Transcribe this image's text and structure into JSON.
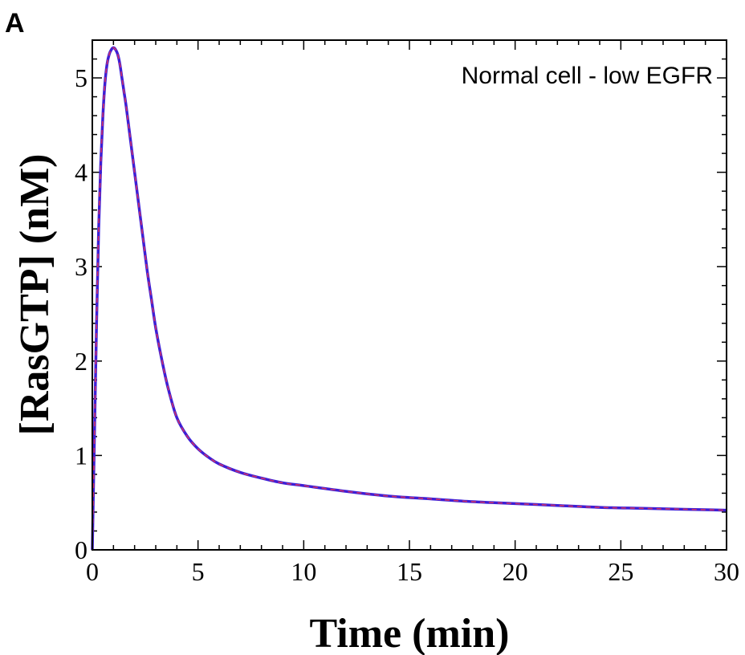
{
  "panel_label": "A",
  "chart_data": {
    "type": "line",
    "title": "",
    "annotation": "Normal cell - low EGFR",
    "xlabel": "Time (min)",
    "ylabel": "[RasGTP] (nM)",
    "xlim": [
      0,
      30
    ],
    "ylim": [
      0,
      5.4
    ],
    "xticks": [
      0,
      5,
      10,
      15,
      20,
      25,
      30
    ],
    "yticks": [
      0,
      1,
      2,
      3,
      4,
      5
    ],
    "grid": false,
    "series": [
      {
        "color": "#3d1fd6",
        "overlay_color": "#d0306a",
        "overlay_style": "dashed",
        "x": [
          0,
          0.1,
          0.2,
          0.3,
          0.4,
          0.5,
          0.6,
          0.7,
          0.8,
          0.9,
          1.0,
          1.1,
          1.2,
          1.3,
          1.4,
          1.5,
          1.6,
          1.8,
          2.0,
          2.2,
          2.4,
          2.6,
          2.8,
          3.0,
          3.3,
          3.6,
          4.0,
          4.5,
          5.0,
          5.5,
          6.0,
          7.0,
          8.0,
          9.0,
          10.0,
          12.0,
          14.0,
          16.0,
          18.0,
          20.0,
          22.0,
          24.0,
          26.0,
          28.0,
          30.0
        ],
        "y": [
          0.0,
          1.2,
          2.4,
          3.4,
          4.1,
          4.6,
          4.95,
          5.15,
          5.25,
          5.3,
          5.32,
          5.3,
          5.25,
          5.15,
          5.0,
          4.85,
          4.7,
          4.35,
          4.0,
          3.65,
          3.3,
          2.95,
          2.65,
          2.35,
          2.0,
          1.7,
          1.4,
          1.2,
          1.07,
          0.98,
          0.91,
          0.82,
          0.76,
          0.71,
          0.68,
          0.62,
          0.57,
          0.54,
          0.51,
          0.49,
          0.47,
          0.45,
          0.44,
          0.43,
          0.42
        ]
      }
    ]
  }
}
